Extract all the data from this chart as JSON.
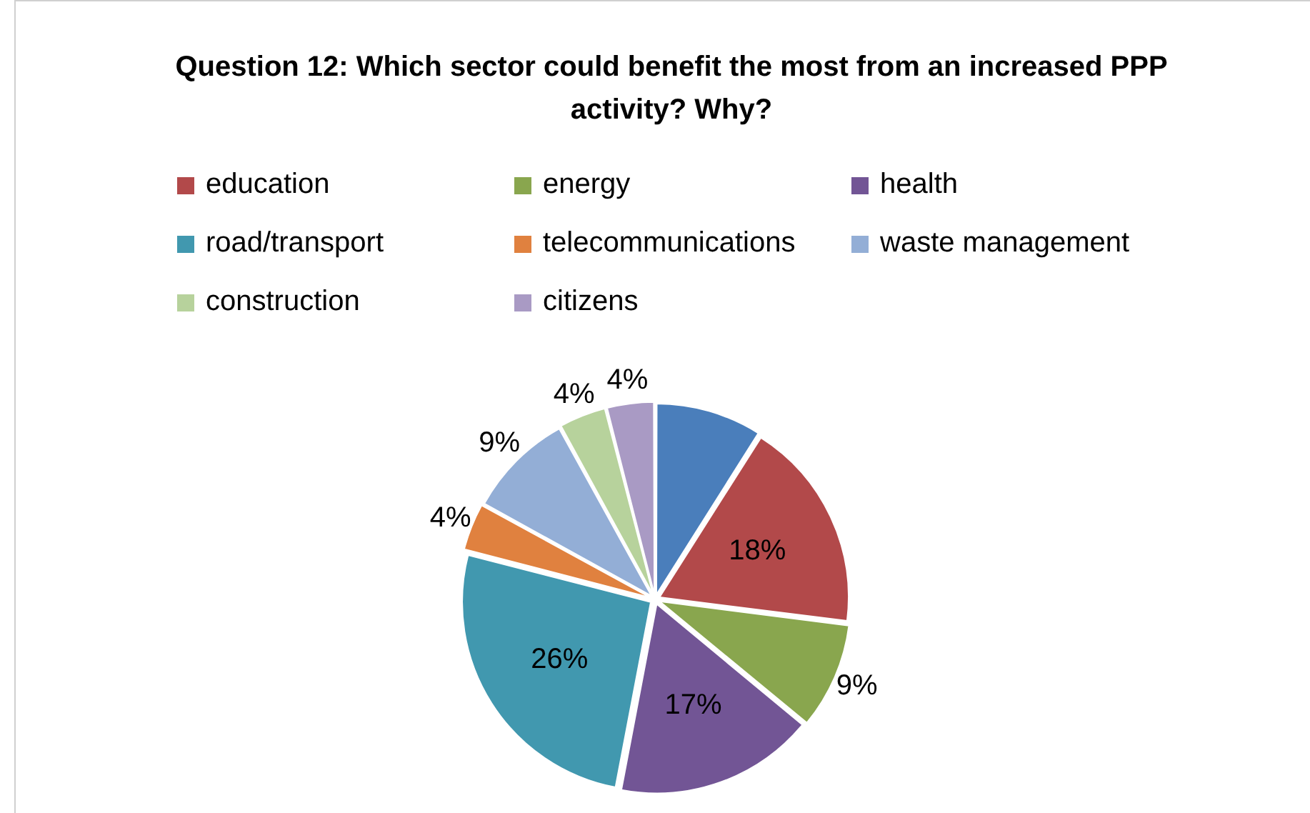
{
  "chart_data": {
    "type": "pie",
    "title": "Question 12: Which sector could benefit the most from an increased PPP activity? Why?",
    "categories": [
      null,
      "education",
      "energy",
      "health",
      "road/transport",
      "telecommunications",
      "waste management",
      "construction",
      "citizens"
    ],
    "values": [
      9,
      18,
      9,
      17,
      26,
      4,
      9,
      4,
      4
    ],
    "value_labels": [
      null,
      "18%",
      "9%",
      "17%",
      "26%",
      "4%",
      "9%",
      "4%",
      "4%"
    ],
    "colors": [
      "#4a7ebb",
      "#b2494a",
      "#89a64e",
      "#725595",
      "#4198af",
      "#e0813f",
      "#93aed6",
      "#b7d29c",
      "#a99ac4"
    ],
    "legend": "top"
  }
}
